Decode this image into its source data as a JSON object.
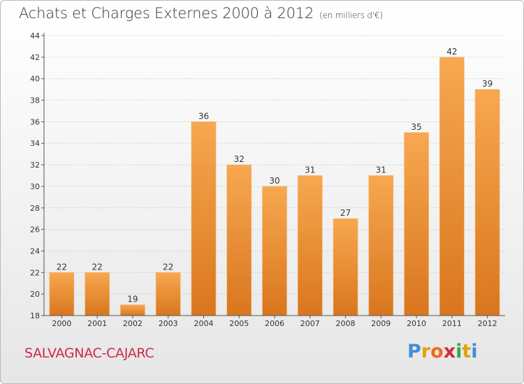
{
  "header": {
    "title": "Achats et Charges Externes 2000 à 2012",
    "unit": "(en milliers d'€)"
  },
  "footer": {
    "commune": "SALVAGNAC-CAJARC",
    "brand_letters": [
      "P",
      "r",
      "o",
      "x",
      "i",
      "t",
      "i"
    ],
    "brand_colors": [
      "#3f8fd6",
      "#e0a010",
      "#ee6a1a",
      "#d22a3a",
      "#3fa53f",
      "#e0a010",
      "#3f8fd6"
    ]
  },
  "colors": {
    "bar_top": "#f7a850",
    "bar_bottom": "#d9761e",
    "axis": "#555555",
    "grid": "#bfbfbf"
  },
  "chart_data": {
    "type": "bar",
    "categories": [
      "2000",
      "2001",
      "2002",
      "2003",
      "2004",
      "2005",
      "2006",
      "2007",
      "2008",
      "2009",
      "2010",
      "2011",
      "2012"
    ],
    "values": [
      22,
      22,
      19,
      22,
      36,
      32,
      30,
      31,
      27,
      31,
      35,
      42,
      39
    ],
    "title": "Achats et Charges Externes 2000 à 2012",
    "subtitle": "(en milliers d'€)",
    "ylim": [
      18,
      44
    ],
    "yticks": [
      18,
      20,
      22,
      24,
      26,
      28,
      30,
      32,
      34,
      36,
      38,
      40,
      42,
      44
    ],
    "grid": true,
    "data_labels": true
  }
}
